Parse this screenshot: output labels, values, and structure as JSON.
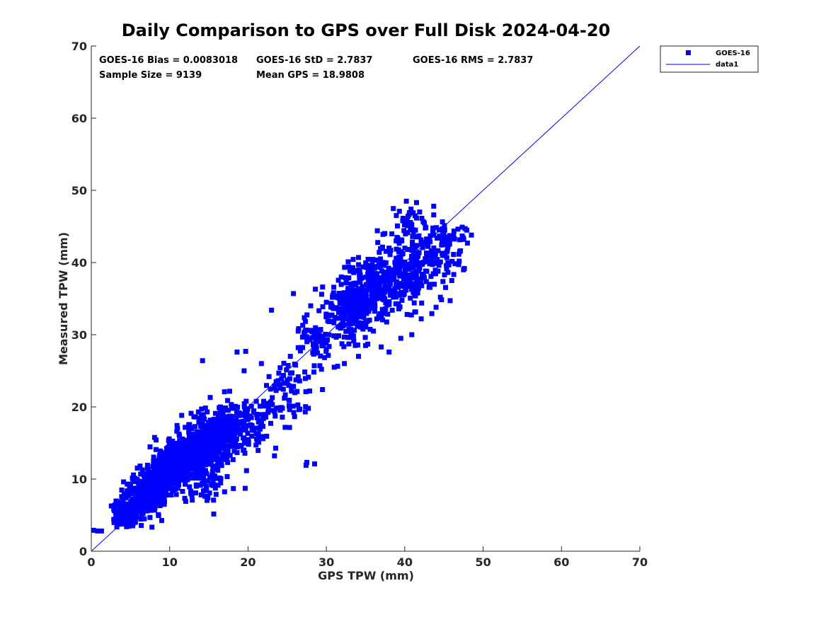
{
  "chart_data": {
    "type": "scatter",
    "title": "Daily Comparison to GPS over Full Disk 2024-04-20",
    "xlabel": "GPS TPW (mm)",
    "ylabel": "Measured TPW (mm)",
    "xlim": [
      0,
      70
    ],
    "ylim": [
      0,
      70
    ],
    "xticks": [
      "0",
      "10",
      "20",
      "30",
      "40",
      "50",
      "60",
      "70"
    ],
    "yticks": [
      "0",
      "10",
      "20",
      "30",
      "40",
      "50",
      "60",
      "70"
    ],
    "grid": false,
    "legend_position": "top-right outside",
    "stats": {
      "bias": "GOES-16 Bias = 0.0083018",
      "std": "GOES-16 StD = 2.7837",
      "rms": "GOES-16 RMS = 2.7837",
      "sample_size": "Sample Size = 9139",
      "mean_gps": "Mean GPS = 18.9808"
    },
    "series": [
      {
        "name": "GOES-16",
        "marker": "square",
        "color": "#0000ff",
        "clusters": [
          {
            "cx": 4.5,
            "cy": 5.2,
            "sx": 1.0,
            "sy": 1.1,
            "n": 170
          },
          {
            "cx": 7.0,
            "cy": 8.0,
            "sx": 1.2,
            "sy": 1.3,
            "n": 260
          },
          {
            "cx": 9.5,
            "cy": 10.5,
            "sx": 1.3,
            "sy": 1.4,
            "n": 300
          },
          {
            "cx": 12.0,
            "cy": 13.0,
            "sx": 1.4,
            "sy": 1.5,
            "n": 300
          },
          {
            "cx": 15.0,
            "cy": 15.5,
            "sx": 1.5,
            "sy": 1.9,
            "n": 340
          },
          {
            "cx": 17.5,
            "cy": 17.5,
            "sx": 1.3,
            "sy": 1.6,
            "n": 150
          },
          {
            "cx": 14.5,
            "cy": 9.5,
            "sx": 1.6,
            "sy": 1.6,
            "n": 60
          },
          {
            "cx": 20.0,
            "cy": 17.0,
            "sx": 1.5,
            "sy": 1.5,
            "n": 70
          },
          {
            "cx": 23.5,
            "cy": 19.5,
            "sx": 1.6,
            "sy": 1.2,
            "n": 40
          },
          {
            "cx": 25.0,
            "cy": 24.0,
            "sx": 1.4,
            "sy": 1.5,
            "n": 45
          },
          {
            "cx": 28.5,
            "cy": 29.5,
            "sx": 1.3,
            "sy": 1.5,
            "n": 70
          },
          {
            "cx": 33.0,
            "cy": 33.5,
            "sx": 1.5,
            "sy": 2.0,
            "n": 220
          },
          {
            "cx": 35.5,
            "cy": 36.5,
            "sx": 1.5,
            "sy": 2.2,
            "n": 200
          },
          {
            "cx": 39.5,
            "cy": 38.5,
            "sx": 1.9,
            "sy": 2.8,
            "n": 200
          },
          {
            "cx": 43.0,
            "cy": 41.0,
            "sx": 1.8,
            "sy": 2.3,
            "n": 110
          },
          {
            "cx": 46.0,
            "cy": 43.0,
            "sx": 1.2,
            "sy": 1.2,
            "n": 40
          },
          {
            "cx": 40.5,
            "cy": 46.0,
            "sx": 1.0,
            "sy": 1.2,
            "n": 20
          }
        ],
        "points": [
          [
            0.3,
            2.9
          ],
          [
            0.8,
            2.8
          ],
          [
            1.3,
            2.8
          ],
          [
            3.5,
            3.8
          ],
          [
            4.5,
            3.4
          ],
          [
            5.3,
            3.8
          ],
          [
            14.2,
            26.4
          ],
          [
            17.0,
            22.1
          ],
          [
            19.5,
            25.0
          ],
          [
            19.7,
            27.7
          ],
          [
            18.6,
            27.6
          ],
          [
            21.7,
            26.0
          ],
          [
            23.0,
            33.4
          ],
          [
            25.8,
            35.7
          ],
          [
            28.0,
            34.0
          ],
          [
            28.6,
            36.3
          ],
          [
            29.4,
            35.6
          ],
          [
            30.0,
            34.5
          ],
          [
            26.4,
            30.5
          ],
          [
            28.0,
            30.6
          ],
          [
            29.1,
            29.9
          ],
          [
            27.5,
            12.3
          ],
          [
            27.4,
            11.9
          ],
          [
            28.5,
            12.1
          ],
          [
            27.3,
            19.3
          ],
          [
            26.6,
            19.7
          ],
          [
            27.7,
            19.8
          ],
          [
            29.5,
            22.4
          ],
          [
            25.0,
            23.5
          ],
          [
            25.4,
            27.0
          ],
          [
            23.6,
            23.5
          ],
          [
            30.0,
            28.0
          ],
          [
            31.0,
            25.5
          ],
          [
            32.3,
            26.0
          ],
          [
            34.1,
            27.0
          ],
          [
            35.0,
            28.5
          ],
          [
            36.0,
            30.5
          ],
          [
            37.0,
            28.3
          ],
          [
            38.0,
            27.6
          ],
          [
            39.5,
            29.5
          ],
          [
            40.3,
            32.8
          ],
          [
            40.9,
            30.0
          ],
          [
            42.1,
            32.2
          ],
          [
            44.0,
            33.8
          ],
          [
            46.0,
            37.5
          ],
          [
            47.5,
            39.0
          ],
          [
            48.0,
            42.7
          ],
          [
            48.5,
            43.8
          ],
          [
            47.7,
            44.7
          ],
          [
            43.7,
            47.8
          ],
          [
            43.7,
            46.6
          ],
          [
            42.5,
            45.5
          ],
          [
            40.2,
            48.5
          ],
          [
            41.5,
            48.3
          ],
          [
            40.8,
            47.4
          ],
          [
            41.9,
            47.0
          ],
          [
            36.5,
            44.4
          ],
          [
            41.0,
            43.6
          ],
          [
            38.9,
            43.0
          ],
          [
            38.0,
            42.0
          ],
          [
            36.9,
            40.5
          ],
          [
            34.1,
            40.7
          ],
          [
            33.0,
            39.0
          ],
          [
            32.4,
            37.9
          ],
          [
            31.9,
            38.0
          ],
          [
            33.8,
            35.2
          ]
        ]
      },
      {
        "name": "data1",
        "type": "line",
        "color": "#0000ff",
        "x": [
          0,
          70
        ],
        "y": [
          0,
          70
        ]
      }
    ]
  }
}
